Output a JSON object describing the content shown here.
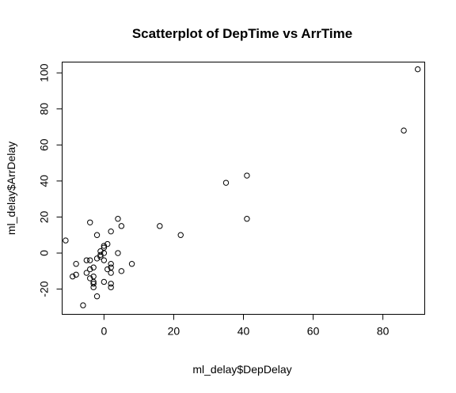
{
  "chart_data": {
    "type": "scatter",
    "title": "Scatterplot of DepTime vs ArrTime",
    "xlabel": "ml_delay$DepDelay",
    "ylabel": "ml_delay$ArrDelay",
    "xlim": [
      -12,
      92
    ],
    "ylim": [
      -34,
      106
    ],
    "xticks": [
      0,
      20,
      40,
      60,
      80
    ],
    "yticks": [
      -20,
      0,
      20,
      40,
      60,
      80,
      100
    ],
    "grid": false,
    "legend": "none",
    "marker": "open-circle",
    "color": "#000000",
    "points": [
      {
        "x": -11,
        "y": 7
      },
      {
        "x": -9,
        "y": -13
      },
      {
        "x": -8,
        "y": -12
      },
      {
        "x": -8,
        "y": -6
      },
      {
        "x": -6,
        "y": -29
      },
      {
        "x": -5,
        "y": -4
      },
      {
        "x": -5,
        "y": -11
      },
      {
        "x": -4,
        "y": 17
      },
      {
        "x": -4,
        "y": -9
      },
      {
        "x": -4,
        "y": -14
      },
      {
        "x": -4,
        "y": -4
      },
      {
        "x": -3,
        "y": -8
      },
      {
        "x": -3,
        "y": -13
      },
      {
        "x": -3,
        "y": -16
      },
      {
        "x": -3,
        "y": -17
      },
      {
        "x": -3,
        "y": -19
      },
      {
        "x": -2,
        "y": -3
      },
      {
        "x": -2,
        "y": 10
      },
      {
        "x": -2,
        "y": -24
      },
      {
        "x": -1,
        "y": -2
      },
      {
        "x": -1,
        "y": -1
      },
      {
        "x": -1,
        "y": 1
      },
      {
        "x": 0,
        "y": 3
      },
      {
        "x": 0,
        "y": 4
      },
      {
        "x": 0,
        "y": 0
      },
      {
        "x": 0,
        "y": -4
      },
      {
        "x": 0,
        "y": -16
      },
      {
        "x": 1,
        "y": 5
      },
      {
        "x": 1,
        "y": -9
      },
      {
        "x": 2,
        "y": 12
      },
      {
        "x": 2,
        "y": -6
      },
      {
        "x": 2,
        "y": -8
      },
      {
        "x": 2,
        "y": -11
      },
      {
        "x": 2,
        "y": -17
      },
      {
        "x": 2,
        "y": -19
      },
      {
        "x": 4,
        "y": 19
      },
      {
        "x": 4,
        "y": 0
      },
      {
        "x": 5,
        "y": 15
      },
      {
        "x": 5,
        "y": -10
      },
      {
        "x": 8,
        "y": -6
      },
      {
        "x": 16,
        "y": 15
      },
      {
        "x": 22,
        "y": 10
      },
      {
        "x": 35,
        "y": 39
      },
      {
        "x": 41,
        "y": 43
      },
      {
        "x": 41,
        "y": 19
      },
      {
        "x": 86,
        "y": 68
      },
      {
        "x": 90,
        "y": 102
      }
    ]
  }
}
